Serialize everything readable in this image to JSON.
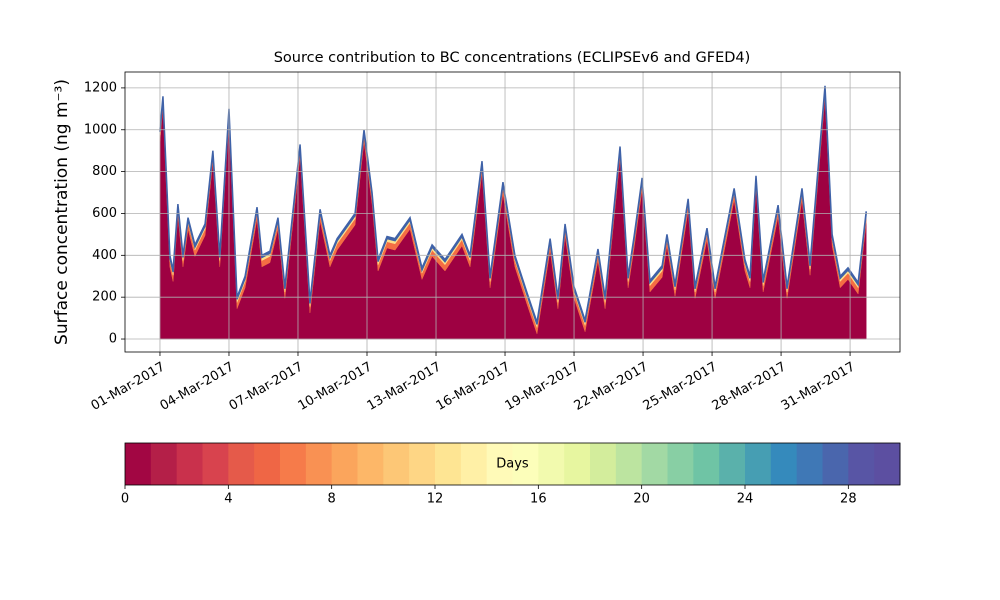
{
  "chart_data": {
    "type": "stacked_area",
    "title": "Source contribution to BC concentrations (ECLIPSEv6 and GFED4)",
    "y_label": "Surface concentration (ng m⁻³)",
    "x": [
      0,
      0.13,
      0.43,
      0.57,
      0.78,
      1.0,
      1.22,
      1.52,
      1.96,
      2.3,
      2.6,
      3.0,
      3.35,
      3.7,
      4.22,
      4.43,
      4.78,
      5.13,
      5.43,
      6.09,
      6.52,
      6.96,
      7.39,
      7.7,
      8.48,
      8.87,
      9.22,
      9.48,
      9.87,
      10.22,
      10.87,
      11.39,
      11.83,
      12.39,
      13.13,
      13.48,
      14.0,
      14.35,
      14.91,
      15.43,
      15.96,
      16.39,
      16.96,
      17.3,
      17.61,
      18.0,
      18.48,
      19.04,
      19.35,
      20.0,
      20.35,
      20.61,
      20.96,
      21.3,
      21.83,
      22.04,
      22.39,
      22.96,
      23.26,
      23.78,
      24.13,
      24.96,
      25.43,
      25.65,
      25.91,
      26.22,
      26.87,
      27.26,
      27.91,
      28.26,
      28.91,
      29.22,
      29.57,
      29.91,
      30.35,
      30.7
    ],
    "series": [
      {
        "color": "#9e0142",
        "values": [
          945,
          1105,
          345,
          275,
          590,
          345,
          525,
          395,
          495,
          845,
          345,
          1045,
          145,
          245,
          575,
          345,
          365,
          525,
          195,
          875,
          125,
          565,
          345,
          425,
          545,
          945,
          645,
          325,
          435,
          425,
          525,
          285,
          395,
          325,
          445,
          345,
          795,
          245,
          695,
          345,
          165,
          25,
          425,
          145,
          495,
          195,
          35,
          375,
          145,
          865,
          245,
          435,
          715,
          225,
          295,
          445,
          205,
          615,
          195,
          475,
          195,
          665,
          325,
          245,
          725,
          225,
          585,
          195,
          665,
          305,
          1155,
          445,
          245,
          285,
          215,
          555
        ]
      },
      {
        "color": "#f46d43",
        "values": [
          30,
          30,
          30,
          30,
          30,
          30,
          30,
          30,
          30,
          30,
          30,
          30,
          30,
          30,
          30,
          30,
          30,
          30,
          30,
          30,
          30,
          30,
          30,
          30,
          30,
          30,
          30,
          30,
          30,
          30,
          30,
          30,
          30,
          30,
          30,
          30,
          30,
          30,
          30,
          30,
          30,
          30,
          30,
          30,
          30,
          30,
          30,
          30,
          30,
          30,
          30,
          30,
          30,
          30,
          30,
          30,
          30,
          30,
          30,
          30,
          30,
          30,
          30,
          30,
          30,
          30,
          30,
          30,
          30,
          30,
          30,
          30,
          30,
          30,
          30,
          30
        ]
      },
      {
        "color": "#fee08b",
        "values": [
          15,
          15,
          15,
          15,
          15,
          15,
          15,
          15,
          15,
          15,
          15,
          15,
          15,
          15,
          15,
          15,
          15,
          15,
          15,
          15,
          15,
          15,
          15,
          15,
          15,
          15,
          15,
          15,
          15,
          15,
          15,
          15,
          15,
          15,
          15,
          15,
          15,
          15,
          15,
          15,
          15,
          15,
          15,
          15,
          15,
          15,
          15,
          15,
          15,
          15,
          15,
          15,
          15,
          15,
          15,
          15,
          15,
          15,
          15,
          15,
          15,
          15,
          15,
          15,
          15,
          15,
          15,
          15,
          15,
          15,
          15,
          15,
          15,
          15,
          15,
          15
        ]
      },
      {
        "color": "#3f62a8",
        "values": [
          10,
          10,
          10,
          10,
          10,
          10,
          10,
          10,
          10,
          10,
          10,
          10,
          10,
          10,
          10,
          10,
          10,
          10,
          10,
          10,
          10,
          10,
          10,
          10,
          10,
          10,
          10,
          10,
          10,
          10,
          10,
          10,
          10,
          10,
          10,
          10,
          10,
          10,
          10,
          10,
          10,
          10,
          10,
          10,
          10,
          10,
          10,
          10,
          10,
          10,
          10,
          10,
          10,
          10,
          10,
          10,
          10,
          10,
          10,
          10,
          10,
          10,
          10,
          10,
          10,
          10,
          10,
          10,
          10,
          10,
          10,
          10,
          10,
          10,
          10,
          10
        ]
      }
    ],
    "xlim": [
      -1.52,
      32.17
    ],
    "xticks": [
      {
        "value": 0,
        "label": "01-Mar-2017"
      },
      {
        "value": 3,
        "label": "04-Mar-2017"
      },
      {
        "value": 6,
        "label": "07-Mar-2017"
      },
      {
        "value": 9,
        "label": "10-Mar-2017"
      },
      {
        "value": 12,
        "label": "13-Mar-2017"
      },
      {
        "value": 15,
        "label": "16-Mar-2017"
      },
      {
        "value": 18,
        "label": "19-Mar-2017"
      },
      {
        "value": 21,
        "label": "22-Mar-2017"
      },
      {
        "value": 24,
        "label": "25-Mar-2017"
      },
      {
        "value": 27,
        "label": "28-Mar-2017"
      },
      {
        "value": 30,
        "label": "31-Mar-2017"
      }
    ],
    "ylim": [
      -62,
      1276
    ],
    "yticks": [
      0,
      200,
      400,
      600,
      800,
      1000,
      1200
    ],
    "grid": true,
    "colorbar": {
      "label": "Days",
      "lim": [
        0,
        30
      ],
      "ticks": [
        0,
        4,
        8,
        12,
        16,
        20,
        24,
        28
      ],
      "colors": [
        "#a20643",
        "#b41f48",
        "#c9314c",
        "#d8434e",
        "#e55a4a",
        "#ef6645",
        "#f67b4a",
        "#f99153",
        "#fba55c",
        "#fdb768",
        "#fdc776",
        "#fed685",
        "#fee593",
        "#fff0a6",
        "#fffab8",
        "#fcfeba",
        "#f2faae",
        "#e7f6a0",
        "#d3ed9c",
        "#bce4a0",
        "#a2d9a4",
        "#88cfa4",
        "#6fc4a5",
        "#5ab1ab",
        "#469eb3",
        "#358abc",
        "#3f78b6",
        "#4a66ad",
        "#5855a5",
        "#5c4fa1"
      ]
    }
  }
}
